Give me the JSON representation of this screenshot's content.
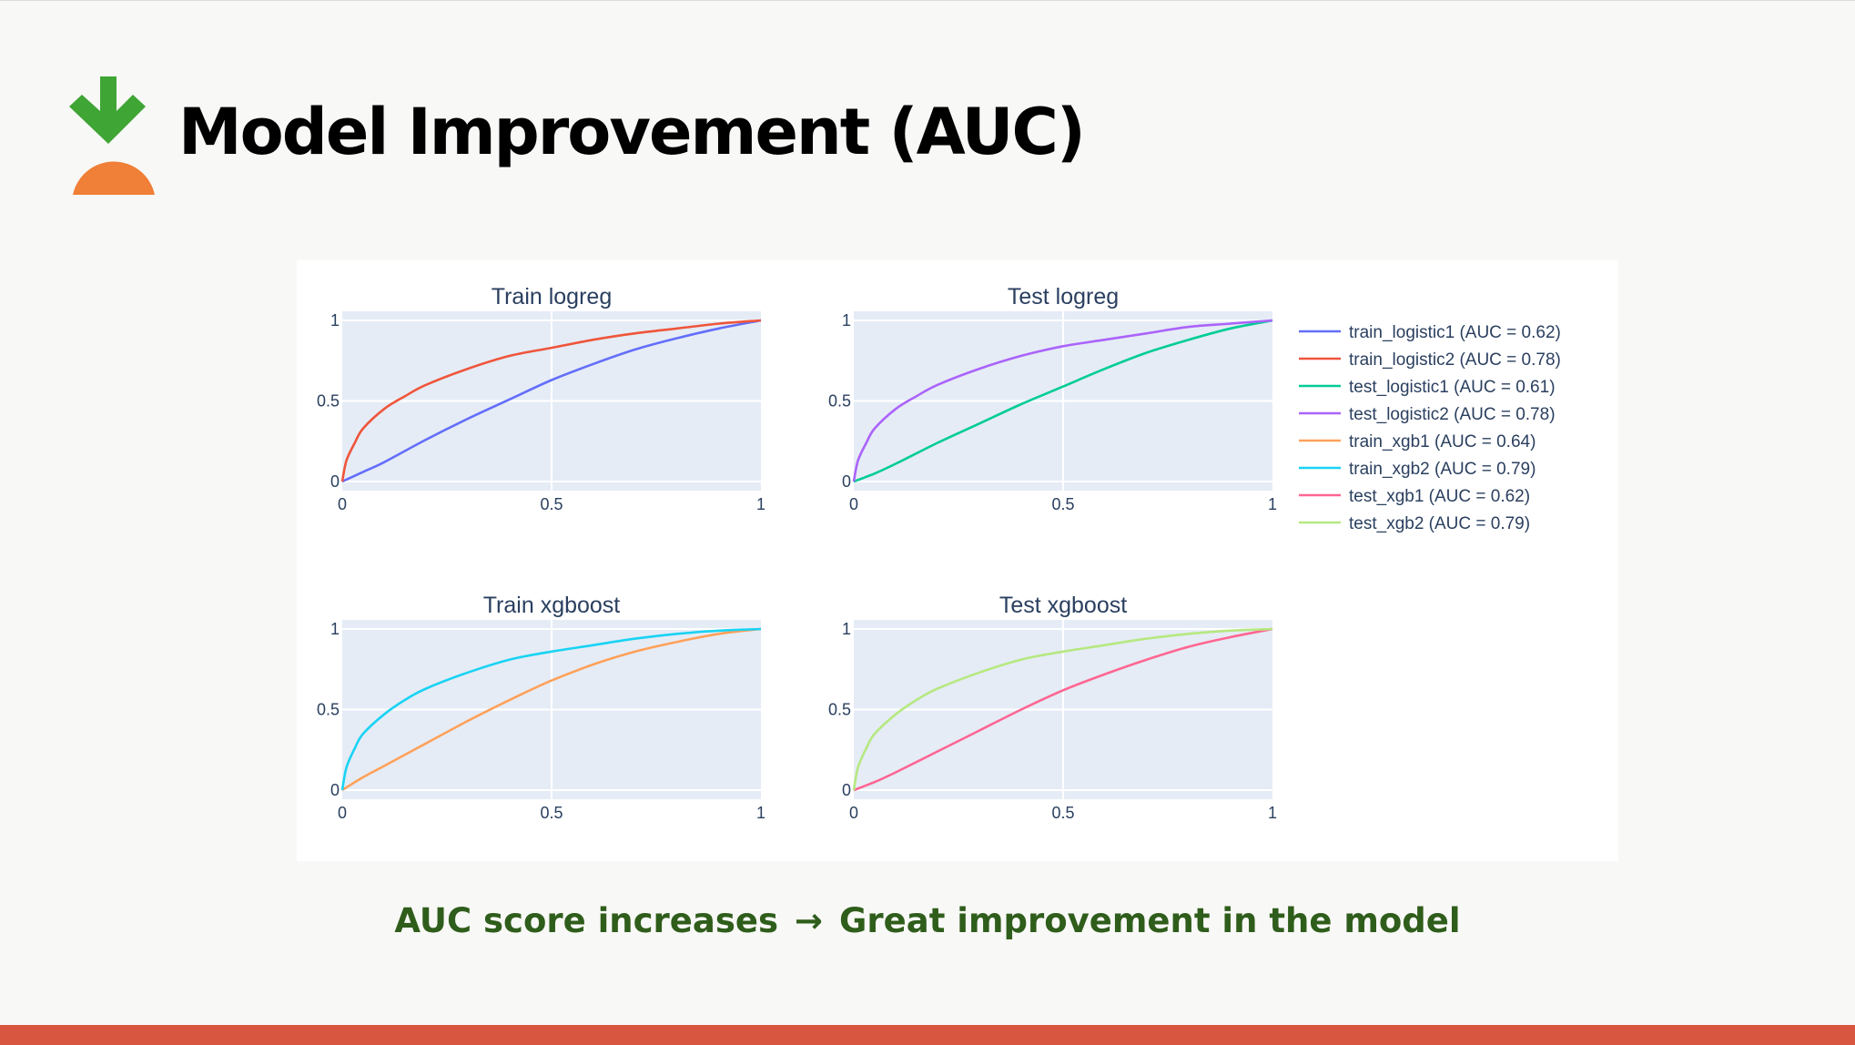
{
  "slide": {
    "title": "Model Improvement (AUC)",
    "caption_left": "AUC score increases",
    "caption_arrow": "→",
    "caption_right": "Great improvement in the model"
  },
  "colors": {
    "background": "#f8f8f6",
    "logo_green": "#3fa535",
    "logo_orange": "#f07f37",
    "caption_green": "#2f5d1b",
    "bottom_bar": "#d8553f",
    "plot_bg": "#e5ecf6",
    "grid": "#ffffff",
    "text": "#2a3f5f"
  },
  "chart_data": [
    {
      "type": "line",
      "title": "Train logreg",
      "xlim": [
        0,
        1
      ],
      "ylim": [
        0,
        1
      ],
      "xticks": [
        "0",
        "0.5",
        "1"
      ],
      "yticks": [
        "0",
        "0.5",
        "1"
      ],
      "grid": true,
      "series": [
        {
          "name": "train_logistic1 (AUC = 0.62)",
          "color": "#636efa",
          "x": [
            0,
            0.05,
            0.1,
            0.2,
            0.3,
            0.4,
            0.5,
            0.6,
            0.7,
            0.8,
            0.9,
            1
          ],
          "y": [
            0,
            0.06,
            0.12,
            0.26,
            0.39,
            0.51,
            0.63,
            0.73,
            0.82,
            0.89,
            0.95,
            1
          ]
        },
        {
          "name": "train_logistic2 (AUC = 0.78)",
          "color": "#ef553b",
          "x": [
            0,
            0.01,
            0.03,
            0.05,
            0.1,
            0.15,
            0.2,
            0.3,
            0.4,
            0.5,
            0.6,
            0.7,
            0.8,
            0.9,
            1
          ],
          "y": [
            0,
            0.13,
            0.24,
            0.33,
            0.45,
            0.53,
            0.6,
            0.7,
            0.78,
            0.83,
            0.88,
            0.92,
            0.95,
            0.98,
            1
          ]
        }
      ]
    },
    {
      "type": "line",
      "title": "Test logreg",
      "xlim": [
        0,
        1
      ],
      "ylim": [
        0,
        1
      ],
      "xticks": [
        "0",
        "0.5",
        "1"
      ],
      "yticks": [
        "0",
        "0.5",
        "1"
      ],
      "grid": true,
      "series": [
        {
          "name": "test_logistic1 (AUC = 0.61)",
          "color": "#00cc96",
          "x": [
            0,
            0.05,
            0.1,
            0.2,
            0.3,
            0.4,
            0.5,
            0.6,
            0.7,
            0.8,
            0.9,
            1
          ],
          "y": [
            0,
            0.05,
            0.11,
            0.24,
            0.36,
            0.48,
            0.59,
            0.7,
            0.8,
            0.88,
            0.95,
            1
          ]
        },
        {
          "name": "test_logistic2 (AUC = 0.78)",
          "color": "#ab63fa",
          "x": [
            0,
            0.01,
            0.03,
            0.05,
            0.1,
            0.15,
            0.2,
            0.3,
            0.4,
            0.5,
            0.6,
            0.7,
            0.8,
            0.9,
            1
          ],
          "y": [
            0,
            0.13,
            0.24,
            0.33,
            0.45,
            0.53,
            0.6,
            0.7,
            0.78,
            0.84,
            0.88,
            0.92,
            0.96,
            0.98,
            1
          ]
        }
      ]
    },
    {
      "type": "line",
      "title": "Train xgboost",
      "xlim": [
        0,
        1
      ],
      "ylim": [
        0,
        1
      ],
      "xticks": [
        "0",
        "0.5",
        "1"
      ],
      "yticks": [
        "0",
        "0.5",
        "1"
      ],
      "grid": true,
      "series": [
        {
          "name": "train_xgb1 (AUC = 0.64)",
          "color": "#ffa15a",
          "x": [
            0,
            0.05,
            0.1,
            0.2,
            0.3,
            0.4,
            0.5,
            0.6,
            0.7,
            0.8,
            0.9,
            1
          ],
          "y": [
            0,
            0.08,
            0.15,
            0.29,
            0.43,
            0.56,
            0.68,
            0.78,
            0.86,
            0.92,
            0.97,
            1
          ]
        },
        {
          "name": "train_xgb2 (AUC = 0.79)",
          "color": "#19d3f3",
          "x": [
            0,
            0.01,
            0.03,
            0.05,
            0.1,
            0.15,
            0.2,
            0.3,
            0.4,
            0.5,
            0.6,
            0.7,
            0.8,
            0.9,
            1
          ],
          "y": [
            0,
            0.14,
            0.26,
            0.35,
            0.47,
            0.56,
            0.63,
            0.73,
            0.81,
            0.86,
            0.9,
            0.94,
            0.97,
            0.99,
            1
          ]
        }
      ]
    },
    {
      "type": "line",
      "title": "Test xgboost",
      "xlim": [
        0,
        1
      ],
      "ylim": [
        0,
        1
      ],
      "xticks": [
        "0",
        "0.5",
        "1"
      ],
      "yticks": [
        "0",
        "0.5",
        "1"
      ],
      "grid": true,
      "series": [
        {
          "name": "test_xgb1 (AUC = 0.62)",
          "color": "#ff6692",
          "x": [
            0,
            0.05,
            0.1,
            0.2,
            0.3,
            0.4,
            0.5,
            0.6,
            0.7,
            0.8,
            0.9,
            1
          ],
          "y": [
            0,
            0.05,
            0.11,
            0.24,
            0.37,
            0.5,
            0.62,
            0.72,
            0.81,
            0.89,
            0.95,
            1
          ]
        },
        {
          "name": "test_xgb2 (AUC = 0.79)",
          "color": "#b6e880",
          "x": [
            0,
            0.01,
            0.03,
            0.05,
            0.1,
            0.15,
            0.2,
            0.3,
            0.4,
            0.5,
            0.6,
            0.7,
            0.8,
            0.9,
            1
          ],
          "y": [
            0,
            0.14,
            0.26,
            0.35,
            0.47,
            0.56,
            0.63,
            0.73,
            0.81,
            0.86,
            0.9,
            0.94,
            0.97,
            0.99,
            1
          ]
        }
      ]
    }
  ],
  "legend": {
    "placement": "right",
    "entries": [
      {
        "label": "train_logistic1 (AUC = 0.62)",
        "color": "#636efa"
      },
      {
        "label": "train_logistic2 (AUC = 0.78)",
        "color": "#ef553b"
      },
      {
        "label": "test_logistic1 (AUC = 0.61)",
        "color": "#00cc96"
      },
      {
        "label": "test_logistic2 (AUC = 0.78)",
        "color": "#ab63fa"
      },
      {
        "label": "train_xgb1 (AUC = 0.64)",
        "color": "#ffa15a"
      },
      {
        "label": "train_xgb2 (AUC = 0.79)",
        "color": "#19d3f3"
      },
      {
        "label": "test_xgb1 (AUC = 0.62)",
        "color": "#ff6692"
      },
      {
        "label": "test_xgb2 (AUC = 0.79)",
        "color": "#b6e880"
      }
    ]
  }
}
